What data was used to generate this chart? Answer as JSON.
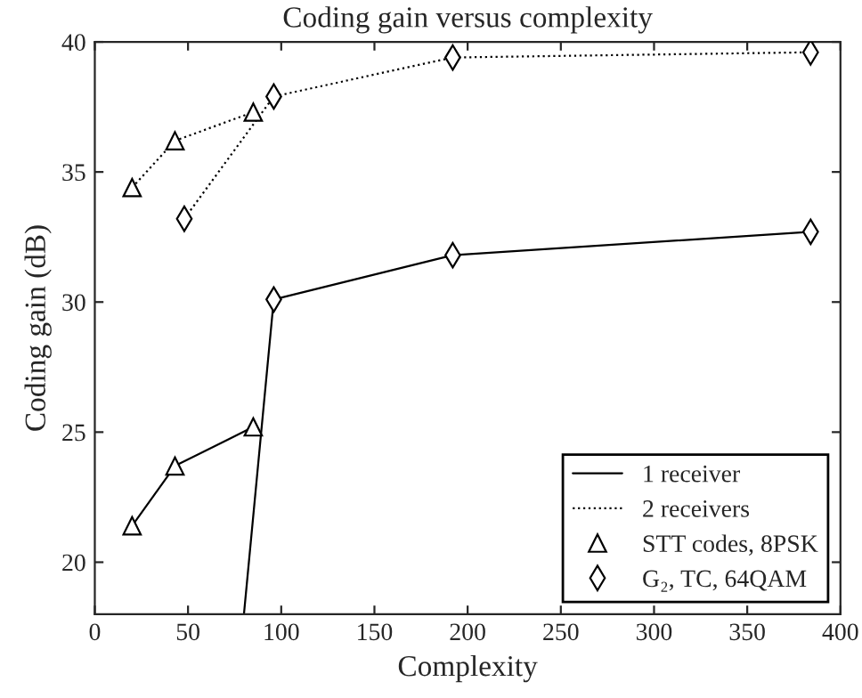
{
  "chart_data": {
    "type": "line",
    "title": "Coding gain versus complexity",
    "xlabel": "Complexity",
    "ylabel": "Coding gain (dB)",
    "xlim": [
      0,
      400
    ],
    "xticks": [
      0,
      50,
      100,
      150,
      200,
      250,
      300,
      350,
      400
    ],
    "ylim": [
      18,
      40
    ],
    "yticks": [
      20,
      25,
      30,
      35,
      40
    ],
    "grid": false,
    "legend": "bottom right",
    "series": [
      {
        "name": "1 receiver",
        "color": "#000000",
        "x": [
          80,
          96,
          192,
          384
        ],
        "values": [
          18,
          30.1,
          31.8,
          32.7
        ],
        "line_style": "solid"
      },
      {
        "name": "2 receivers",
        "color": "#000000",
        "x": [
          20,
          43,
          85
        ],
        "values": [
          34.4,
          36.2,
          37.3
        ],
        "line_style": "dotted"
      },
      {
        "name": "STT codes, 8PSK",
        "type": "scatter",
        "color": "#000000",
        "x": [
          20,
          43,
          85
        ],
        "values": [
          21.4,
          23.7,
          25.2
        ],
        "marker": "triangle"
      },
      {
        "name": "G₂, TC, 64QAM",
        "type": "scatter",
        "color": "#000000",
        "x": [
          96,
          192,
          384
        ],
        "values": [
          30.1,
          31.8,
          32.7
        ],
        "marker": "diamond"
      },
      {
        "color": "#000000",
        "x": [
          20,
          43,
          85
        ],
        "values": [
          21.4,
          23.7,
          25.2
        ],
        "line_style": "solid"
      },
      {
        "color": "#000000",
        "x": [
          48,
          96,
          192,
          384
        ],
        "values": [
          33.2,
          37.9,
          39.4,
          39.6
        ],
        "line_style": "dotted"
      },
      {
        "type": "scatter",
        "color": "#000000",
        "x": [
          20,
          43,
          85
        ],
        "values": [
          34.4,
          36.2,
          37.3
        ],
        "marker": "triangle"
      },
      {
        "type": "scatter",
        "color": "#000000",
        "x": [
          48,
          96,
          192,
          384
        ],
        "values": [
          33.2,
          37.9,
          39.4,
          39.6
        ],
        "marker": "diamond"
      }
    ]
  }
}
